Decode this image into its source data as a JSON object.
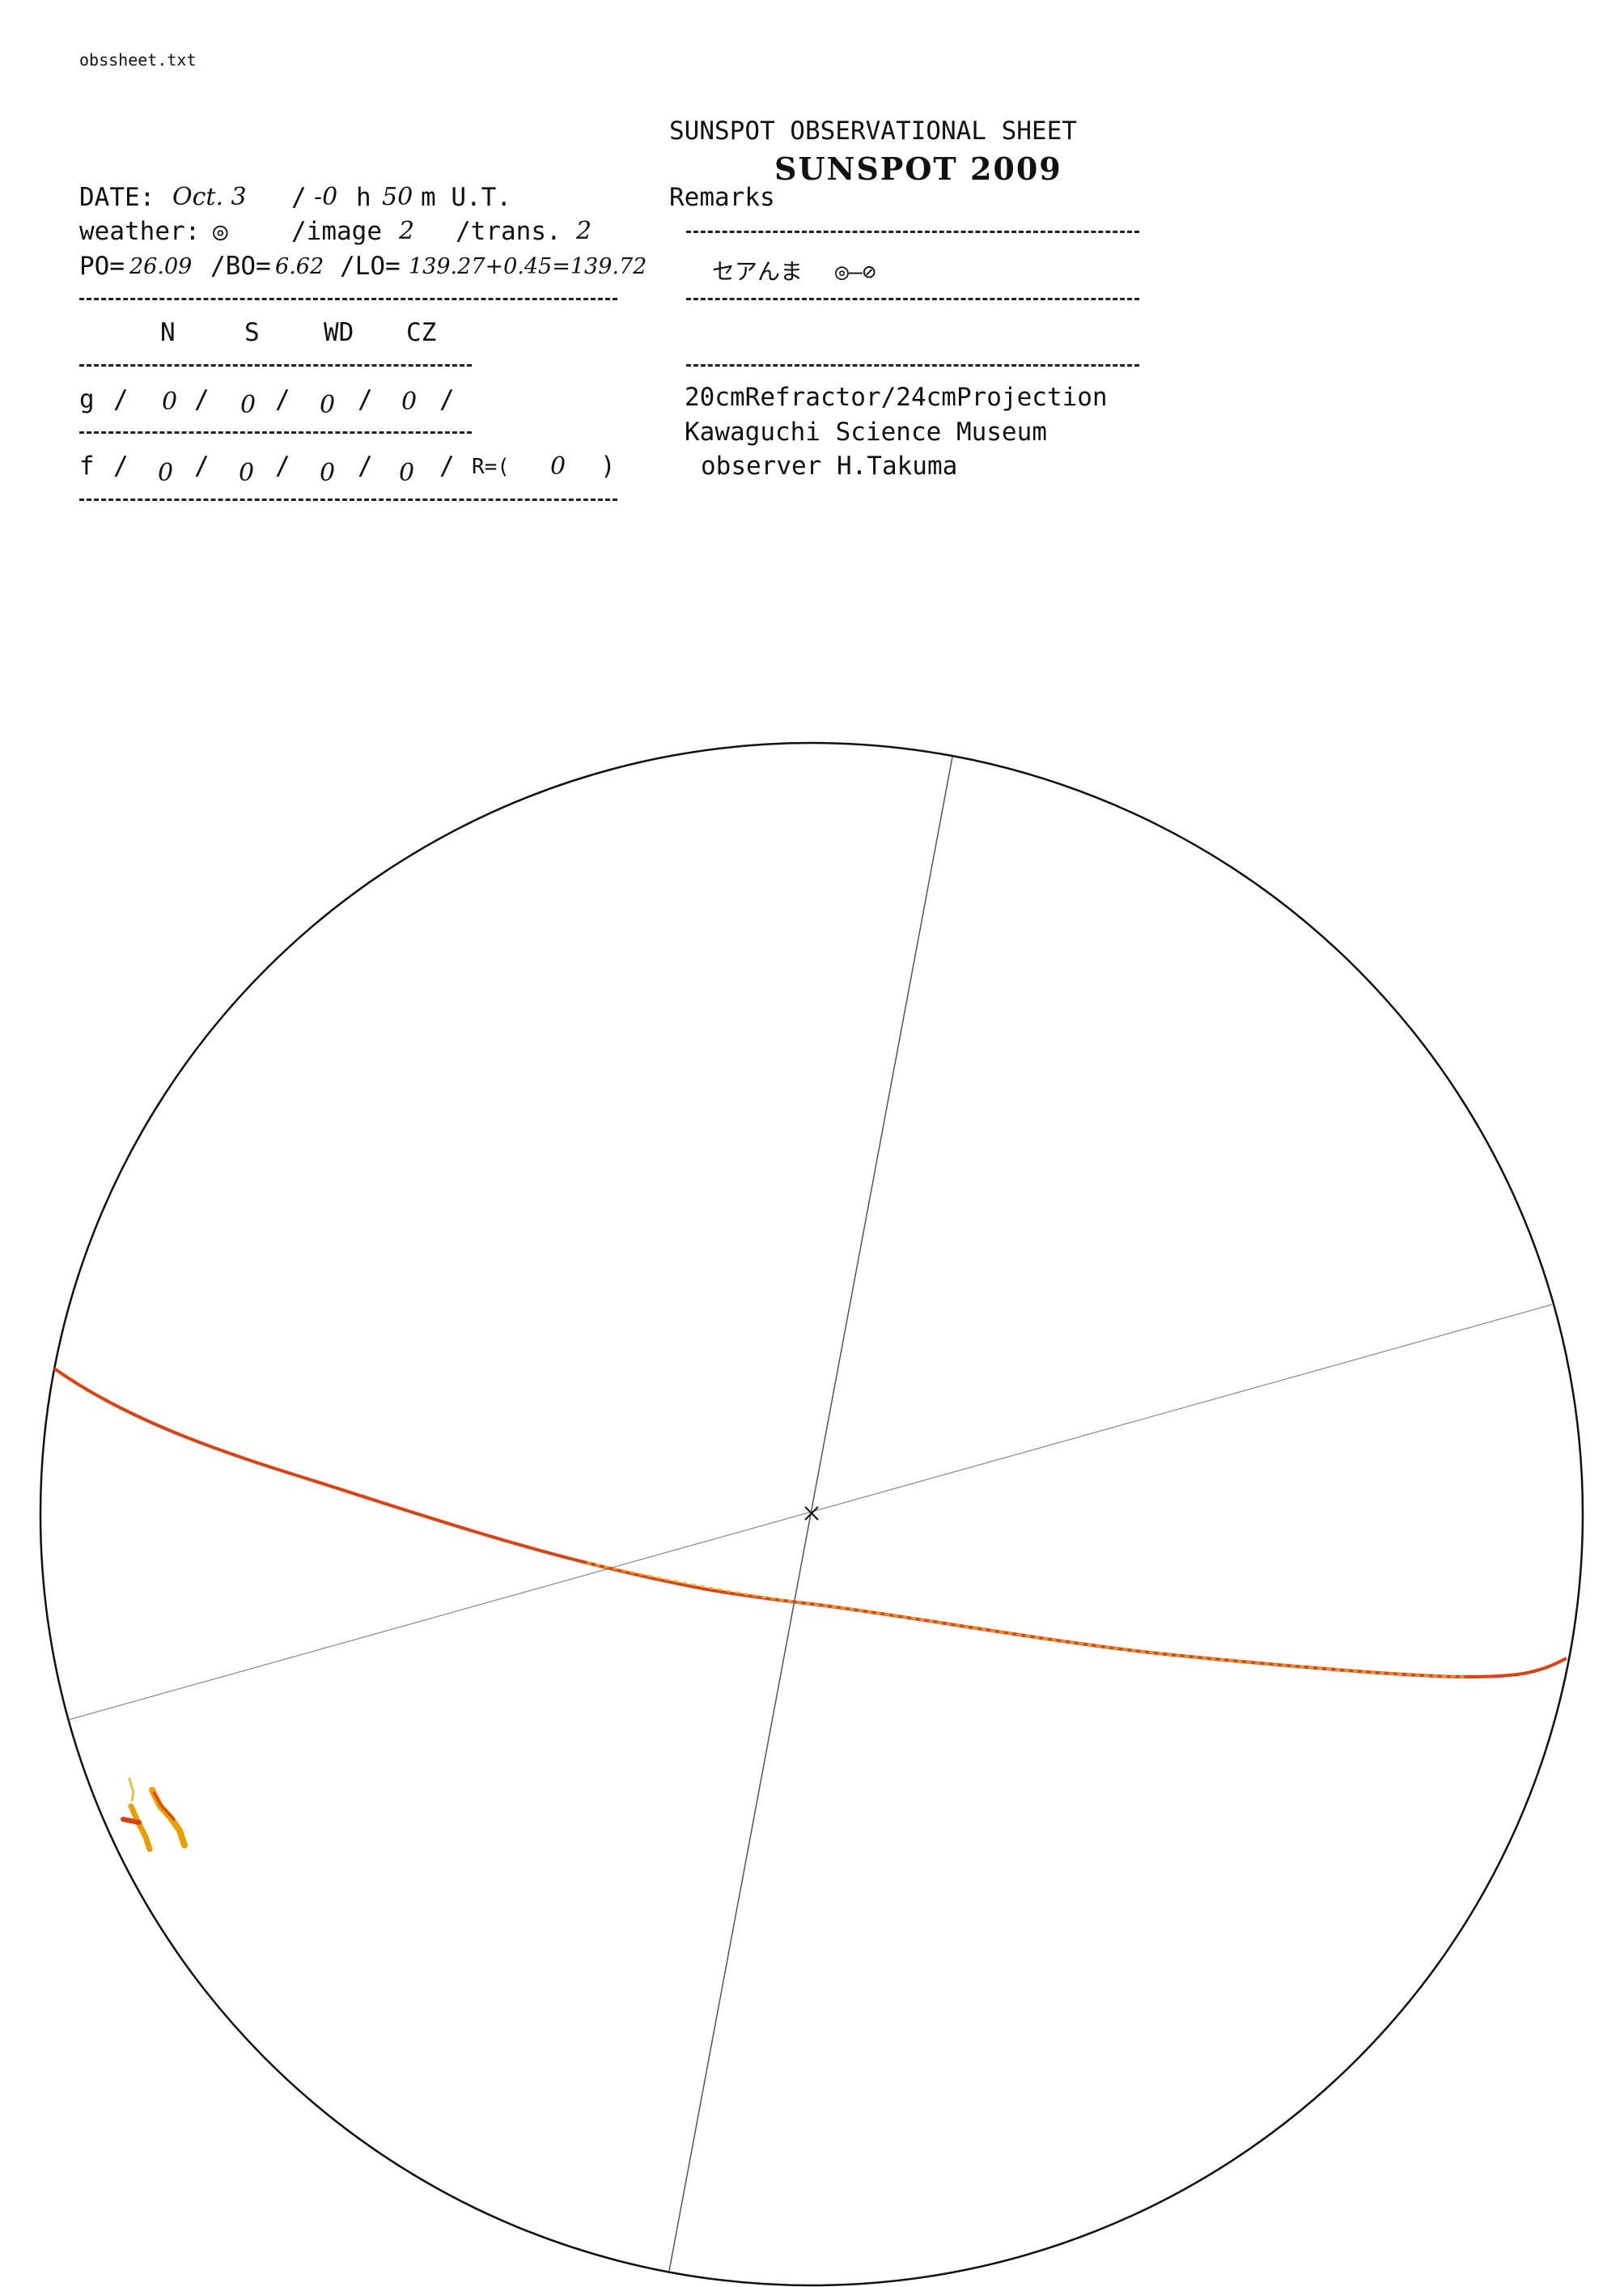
{
  "file_name": "obssheet.txt",
  "header": {
    "title": "SUNSPOT OBSERVATIONAL SHEET",
    "subtitle": "SUNSPOT 2009",
    "remarks_label": "Remarks"
  },
  "date": {
    "label": "DATE:",
    "value": "Oct. 3",
    "time_sep": "/",
    "hours": "-0",
    "h_label": "h",
    "minutes": "50",
    "m_label": "m U.T."
  },
  "weather": {
    "label": "weather:",
    "value": "◎",
    "image_label": "/image",
    "image_value": "2",
    "trans_label": "/trans.",
    "trans_value": "2"
  },
  "params": {
    "po_label": "PO=",
    "po_value": "26.09",
    "bo_label": "/BO=",
    "bo_value": "6.62",
    "lo_label": "/LO=",
    "lo_value": "139.27+0.45=139.72"
  },
  "columns": [
    "N",
    "S",
    "WD",
    "CZ"
  ],
  "g_row": {
    "label": "g",
    "values": [
      "0",
      "0",
      "0",
      "0"
    ]
  },
  "f_row": {
    "label": "f",
    "values": [
      "0",
      "0",
      "0",
      "0"
    ],
    "r_label": "R=(",
    "r_value": "0",
    "r_close": ")"
  },
  "remarks": {
    "text": "セアんま",
    "weather_change": "◎—⊘"
  },
  "instrument": {
    "line1": "20cmRefractor/24cmProjection",
    "line2": "Kawaguchi Science Museum",
    "line3": "observer H.Takuma"
  },
  "colors": {
    "ink": "#111111",
    "equator_line": "#e04010",
    "faculae": "#e8a000"
  }
}
